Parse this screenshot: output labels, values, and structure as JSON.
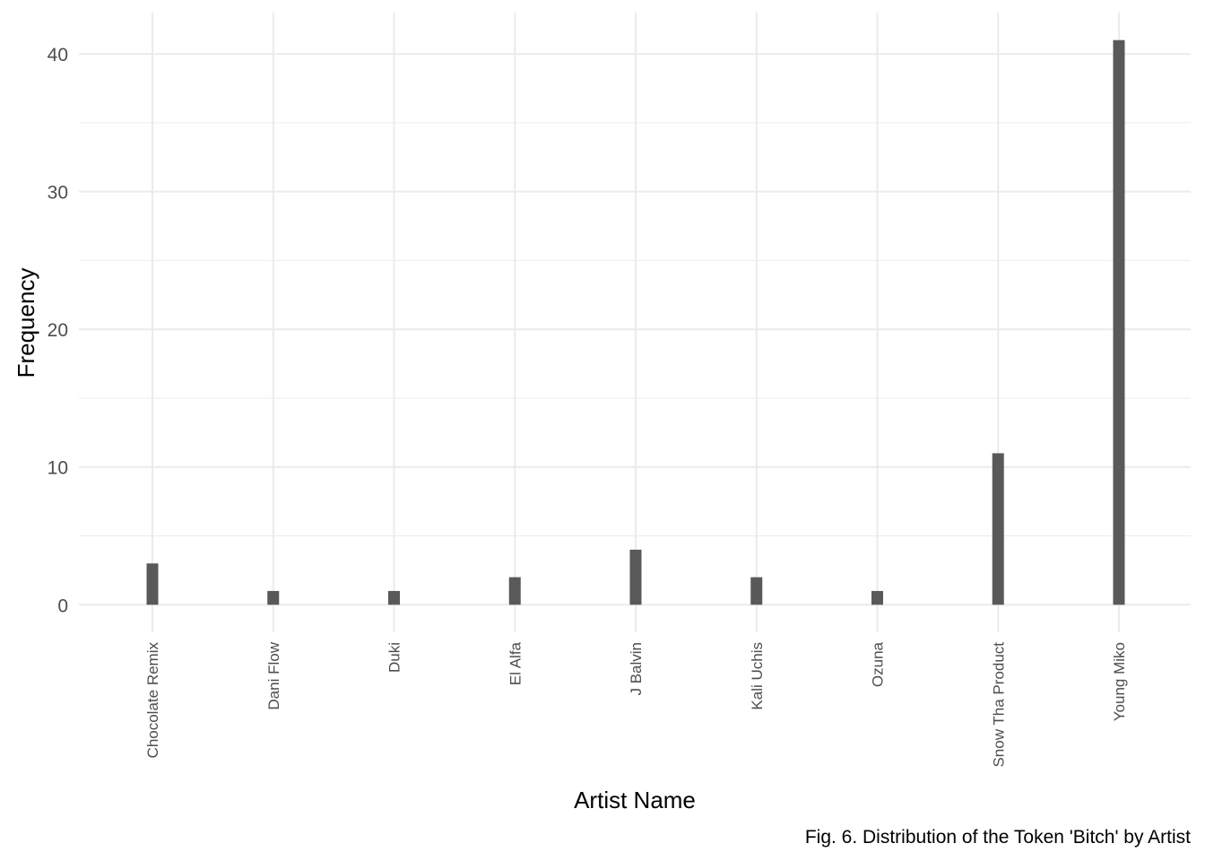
{
  "chart_data": {
    "type": "bar",
    "title": "",
    "xlabel": "Artist Name",
    "ylabel": "Frequency",
    "caption": "Fig. 6. Distribution of the Token 'Bitch' by Artist",
    "categories": [
      "Chocolate Remix",
      "Dani Flow",
      "Duki",
      "El Alfa",
      "J Balvin",
      "Kali Uchis",
      "Ozuna",
      "Snow Tha Product",
      "Young Miko"
    ],
    "values": [
      3,
      1,
      1,
      2,
      4,
      2,
      1,
      11,
      41
    ],
    "ylim": [
      -2,
      43
    ],
    "yticks": [
      0,
      10,
      20,
      30,
      40
    ],
    "grid": true,
    "bar_color": "#595959",
    "grid_color": "#ebebeb"
  }
}
